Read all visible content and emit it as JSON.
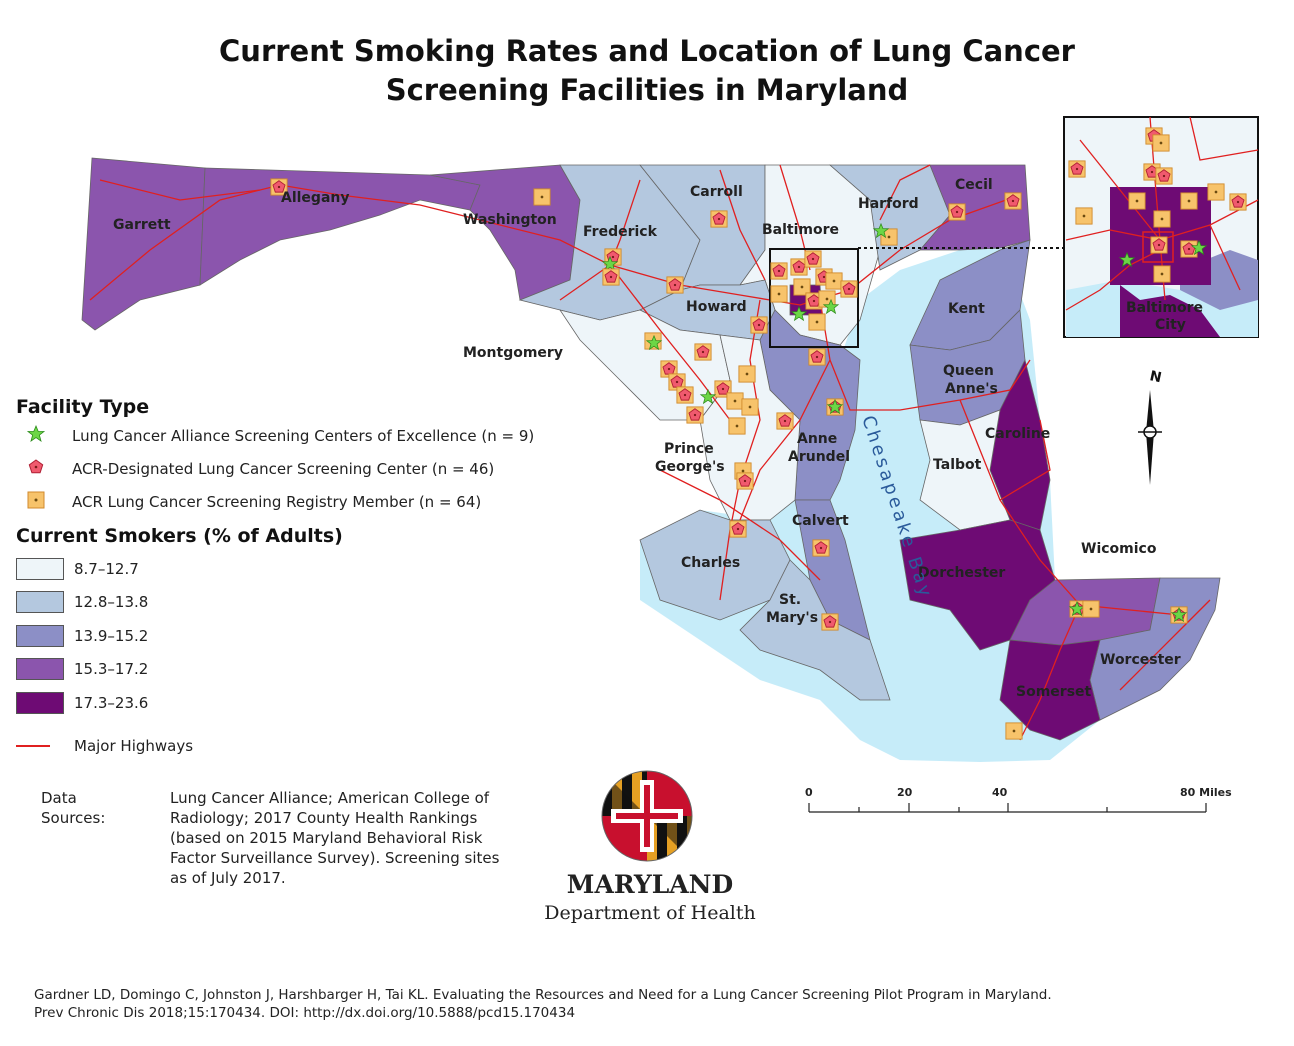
{
  "title_line1": "Current Smoking Rates and Location of Lung Cancer",
  "title_line2": "Screening Facilities in Maryland",
  "counties": {
    "garrett": "Garrett",
    "allegany": "Allegany",
    "washington": "Washington",
    "frederick": "Frederick",
    "carroll": "Carroll",
    "baltimore": "Baltimore",
    "harford": "Harford",
    "cecil": "Cecil",
    "howard": "Howard",
    "montgomery": "Montgomery",
    "kent": "Kent",
    "queen_annes_1": "Queen",
    "queen_annes_2": "Anne's",
    "anne_arundel_1": "Anne",
    "anne_arundel_2": "Arundel",
    "caroline": "Caroline",
    "talbot": "Talbot",
    "prince_georges_1": "Prince",
    "prince_georges_2": "George's",
    "calvert": "Calvert",
    "charles": "Charles",
    "st_marys_1": "St.",
    "st_marys_2": "Mary's",
    "dorchester": "Dorchester",
    "wicomico": "Wicomico",
    "worcester": "Worcester",
    "somerset": "Somerset",
    "baltimore_city_1": "Baltimore",
    "baltimore_city_2": "City"
  },
  "water_label": "Chesapeake Bay",
  "legend": {
    "facility_heading": "Facility Type",
    "facility_items": [
      "Lung Cancer Alliance Screening Centers of Excellence (n = 9)",
      "ACR-Designated Lung Cancer Screening Center (n = 46)",
      "ACR Lung Cancer Screening Registry Member (n = 64)"
    ],
    "smokers_heading": "Current Smokers (% of Adults)",
    "classes": [
      "8.7–12.7",
      "12.8–13.8",
      "13.9–15.2",
      "15.3–17.2",
      "17.3–23.6"
    ],
    "class_colors": [
      "#eef5f9",
      "#b4c8df",
      "#8c8fc6",
      "#8b55ad",
      "#6e0b74"
    ],
    "highway_label": "Major Highways"
  },
  "colors": {
    "water": "#c6ecf9",
    "highway": "#e02020",
    "star": "#6cd646",
    "pentagon": "#f05a6e",
    "square": "#f7c36b"
  },
  "scale_bar": {
    "labels": [
      "0",
      "20",
      "40",
      "80 Miles"
    ]
  },
  "north_arrow": "N",
  "sources": {
    "label": "Data Sources:",
    "lines": [
      "Lung Cancer Alliance; American College of",
      "Radiology; 2017 County Health Rankings",
      "(based on 2015 Maryland Behavioral Risk",
      "Factor Surveillance Survey).  Screening sites",
      "as of July 2017."
    ]
  },
  "logo": {
    "name": "MARYLAND",
    "department": "Department of Health"
  },
  "citation": [
    "Gardner LD, Domingo C, Johnston J, Harshbarger H, Tai KL. Evaluating the Resources and Need for a Lung Cancer Screening Pilot Program in Maryland.",
    "Prev Chronic Dis 2018;15:170434. DOI: http://dx.doi.org/10.5888/pcd15.170434"
  ]
}
